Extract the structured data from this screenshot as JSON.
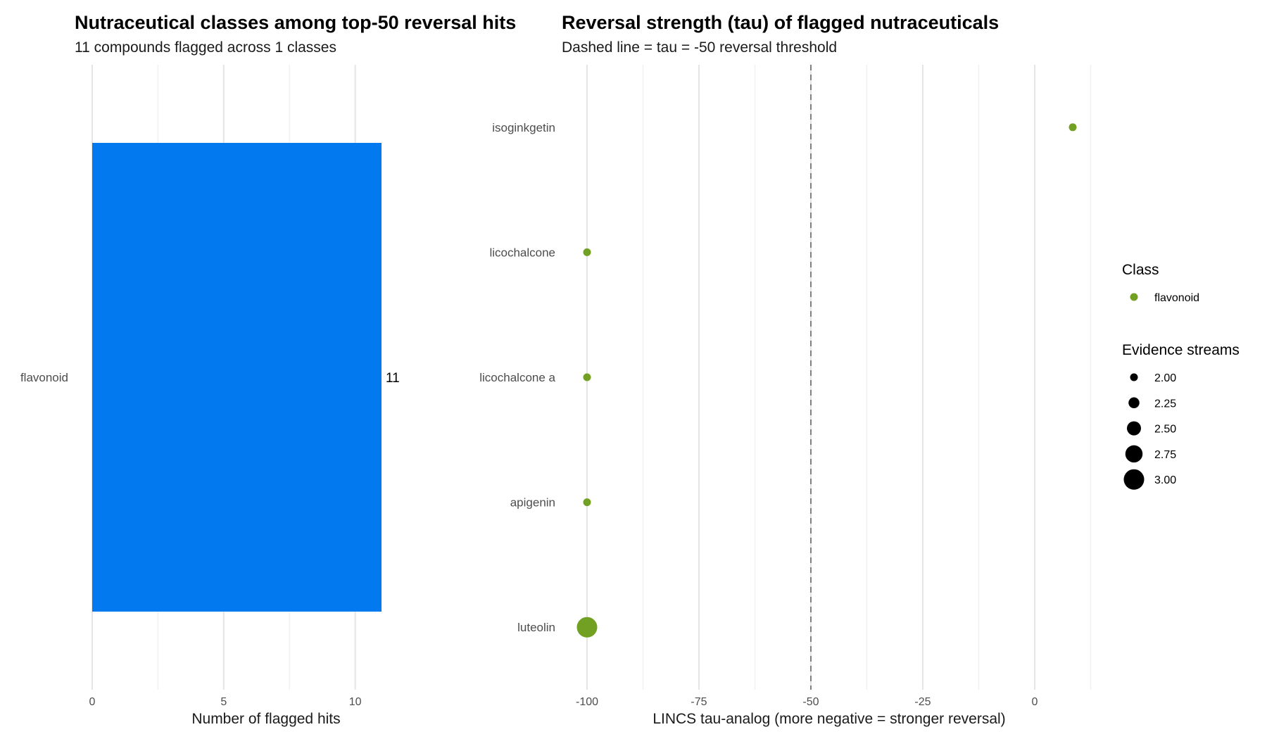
{
  "chart_data": [
    {
      "type": "bar",
      "orientation": "horizontal",
      "title": "Nutraceutical classes among top-50 reversal hits",
      "subtitle": "11 compounds flagged across 1 classes",
      "xlabel": "Number of flagged hits",
      "ylabel": "",
      "categories": [
        "flavonoid"
      ],
      "values": [
        11
      ],
      "data_labels": [
        "11"
      ],
      "xlim": [
        0,
        11
      ],
      "xticks": [
        0,
        5,
        10
      ],
      "xtick_labels": [
        "0",
        "5",
        "10"
      ],
      "bar_color": "#0279EE",
      "grid": true
    },
    {
      "type": "scatter",
      "title": "Reversal strength (tau) of flagged nutraceuticals",
      "subtitle": "Dashed line = tau = -50 reversal threshold",
      "xlabel": "LINCS tau-analog (more negative = stronger reversal)",
      "ylabel": "",
      "categories": [
        "isoginkgetin",
        "licochalcone",
        "licochalcone a",
        "apigenin",
        "luteolin"
      ],
      "points": [
        {
          "compound": "isoginkgetin",
          "tau": 8.5,
          "class": "flavonoid",
          "evidence_streams": 2.0
        },
        {
          "compound": "licochalcone",
          "tau": -100,
          "class": "flavonoid",
          "evidence_streams": 2.0
        },
        {
          "compound": "licochalcone a",
          "tau": -100,
          "class": "flavonoid",
          "evidence_streams": 2.0
        },
        {
          "compound": "apigenin",
          "tau": -100,
          "class": "flavonoid",
          "evidence_streams": 2.0
        },
        {
          "compound": "luteolin",
          "tau": -100,
          "class": "flavonoid",
          "evidence_streams": 3.0
        }
      ],
      "xlim": [
        -100,
        8.5
      ],
      "xticks": [
        -100,
        -75,
        -50,
        -25,
        0
      ],
      "xtick_labels": [
        "-100",
        "-75",
        "-50",
        "-25",
        "0"
      ],
      "reference_line": {
        "x": -50,
        "style": "dashed"
      },
      "point_color": "#72A023",
      "grid": true,
      "legend": {
        "placement": "right",
        "color_title": "Class",
        "color_entries": [
          {
            "label": "flavonoid",
            "color": "#72A023"
          }
        ],
        "size_title": "Evidence streams",
        "size_entries": [
          {
            "label": "2.00",
            "value": 2.0
          },
          {
            "label": "2.25",
            "value": 2.25
          },
          {
            "label": "2.50",
            "value": 2.5
          },
          {
            "label": "2.75",
            "value": 2.75
          },
          {
            "label": "3.00",
            "value": 3.0
          }
        ]
      }
    }
  ]
}
